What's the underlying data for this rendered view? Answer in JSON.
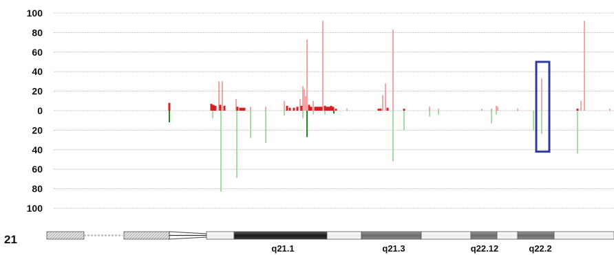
{
  "chart_data": {
    "type": "bar",
    "y_tick_labels": [
      "100",
      "80",
      "60",
      "40",
      "20",
      "0",
      "20",
      "40",
      "60",
      "80",
      "100"
    ],
    "ylim": [
      -100,
      100
    ],
    "grid": true,
    "colors": {
      "up": "#f08080",
      "up_dense": "#d42020",
      "down": "#7cd07c",
      "down_dense": "#1e8c1e",
      "highlight": "#2e3a9e",
      "grid": "#c8c8c8"
    },
    "gains": [
      {
        "x": 246,
        "v": 8,
        "dense": true
      },
      {
        "x": 307,
        "v": 7,
        "dense": true
      },
      {
        "x": 310,
        "v": 6,
        "dense": true
      },
      {
        "x": 313,
        "v": 5,
        "dense": true
      },
      {
        "x": 318,
        "v": 30
      },
      {
        "x": 320,
        "v": 6,
        "dense": true
      },
      {
        "x": 323,
        "v": 30
      },
      {
        "x": 326,
        "v": 5,
        "dense": true
      },
      {
        "x": 343,
        "v": 12
      },
      {
        "x": 345,
        "v": 4,
        "dense": true
      },
      {
        "x": 349,
        "v": 3,
        "dense": true
      },
      {
        "x": 352,
        "v": 3,
        "dense": true
      },
      {
        "x": 355,
        "v": 3,
        "dense": true
      },
      {
        "x": 364,
        "v": 4
      },
      {
        "x": 386,
        "v": 4
      },
      {
        "x": 413,
        "v": 10
      },
      {
        "x": 417,
        "v": 5,
        "dense": true
      },
      {
        "x": 421,
        "v": 3,
        "dense": true
      },
      {
        "x": 427,
        "v": 3,
        "dense": true
      },
      {
        "x": 432,
        "v": 4,
        "dense": true
      },
      {
        "x": 436,
        "v": 12
      },
      {
        "x": 438,
        "v": 5,
        "dense": true
      },
      {
        "x": 440,
        "v": 25
      },
      {
        "x": 442,
        "v": 22
      },
      {
        "x": 444,
        "v": 15
      },
      {
        "x": 446,
        "v": 73
      },
      {
        "x": 449,
        "v": 6,
        "dense": true
      },
      {
        "x": 452,
        "v": 4,
        "dense": true
      },
      {
        "x": 455,
        "v": 10
      },
      {
        "x": 458,
        "v": 4,
        "dense": true
      },
      {
        "x": 461,
        "v": 4,
        "dense": true
      },
      {
        "x": 464,
        "v": 4,
        "dense": true
      },
      {
        "x": 467,
        "v": 4,
        "dense": true
      },
      {
        "x": 469,
        "v": 92
      },
      {
        "x": 472,
        "v": 5,
        "dense": true
      },
      {
        "x": 475,
        "v": 4,
        "dense": true
      },
      {
        "x": 478,
        "v": 4,
        "dense": true
      },
      {
        "x": 481,
        "v": 5,
        "dense": true
      },
      {
        "x": 484,
        "v": 4,
        "dense": true
      },
      {
        "x": 488,
        "v": 2,
        "dense": true
      },
      {
        "x": 504,
        "v": 2
      },
      {
        "x": 550,
        "v": 2,
        "dense": true
      },
      {
        "x": 553,
        "v": 2,
        "dense": true
      },
      {
        "x": 556,
        "v": 16
      },
      {
        "x": 560,
        "v": 28
      },
      {
        "x": 563,
        "v": 3,
        "dense": true
      },
      {
        "x": 571,
        "v": 83
      },
      {
        "x": 587,
        "v": 2,
        "dense": true
      },
      {
        "x": 624,
        "v": 4
      },
      {
        "x": 637,
        "v": 2
      },
      {
        "x": 700,
        "v": 2
      },
      {
        "x": 714,
        "v": 2
      },
      {
        "x": 721,
        "v": 5
      },
      {
        "x": 723,
        "v": 4
      },
      {
        "x": 752,
        "v": 2
      },
      {
        "x": 787,
        "v": 33
      },
      {
        "x": 839,
        "v": 2,
        "dense": true
      },
      {
        "x": 844,
        "v": 10
      },
      {
        "x": 849,
        "v": 92
      },
      {
        "x": 886,
        "v": 2
      }
    ],
    "losses": [
      {
        "x": 246,
        "v": 12,
        "dense": true
      },
      {
        "x": 309,
        "v": 8
      },
      {
        "x": 321,
        "v": 83
      },
      {
        "x": 344,
        "v": 69
      },
      {
        "x": 364,
        "v": 28
      },
      {
        "x": 386,
        "v": 33
      },
      {
        "x": 413,
        "v": 5
      },
      {
        "x": 440,
        "v": 8
      },
      {
        "x": 446,
        "v": 27,
        "dense": true
      },
      {
        "x": 455,
        "v": 4
      },
      {
        "x": 472,
        "v": 4
      },
      {
        "x": 485,
        "v": 3,
        "dense": true
      },
      {
        "x": 571,
        "v": 52
      },
      {
        "x": 587,
        "v": 20
      },
      {
        "x": 624,
        "v": 6
      },
      {
        "x": 637,
        "v": 4
      },
      {
        "x": 714,
        "v": 13
      },
      {
        "x": 721,
        "v": 4
      },
      {
        "x": 775,
        "v": 20
      },
      {
        "x": 787,
        "v": 24
      },
      {
        "x": 839,
        "v": 44
      }
    ],
    "highlight": {
      "x_range": [
        779,
        798
      ],
      "y_range": [
        50,
        -42
      ]
    },
    "ideogram": {
      "chromosome_label": "21",
      "band_labels": [
        "q21.1",
        "q21.3",
        "q22.12",
        "q22.2"
      ],
      "bands": [
        {
          "x0": 68,
          "x1": 122,
          "style": "hatch"
        },
        {
          "x0": 122,
          "x1": 178,
          "style": "thin"
        },
        {
          "x0": 180,
          "x1": 246,
          "style": "hatch"
        },
        {
          "x0": 246,
          "x1": 300,
          "style": "centromere"
        },
        {
          "x0": 300,
          "x1": 340,
          "style": "light"
        },
        {
          "x0": 340,
          "x1": 475,
          "style": "dark"
        },
        {
          "x0": 475,
          "x1": 525,
          "style": "light"
        },
        {
          "x0": 525,
          "x1": 612,
          "style": "mid"
        },
        {
          "x0": 612,
          "x1": 684,
          "style": "light"
        },
        {
          "x0": 684,
          "x1": 722,
          "style": "mid"
        },
        {
          "x0": 722,
          "x1": 752,
          "style": "light"
        },
        {
          "x0": 752,
          "x1": 805,
          "style": "mid"
        },
        {
          "x0": 805,
          "x1": 892,
          "style": "light"
        }
      ]
    }
  }
}
